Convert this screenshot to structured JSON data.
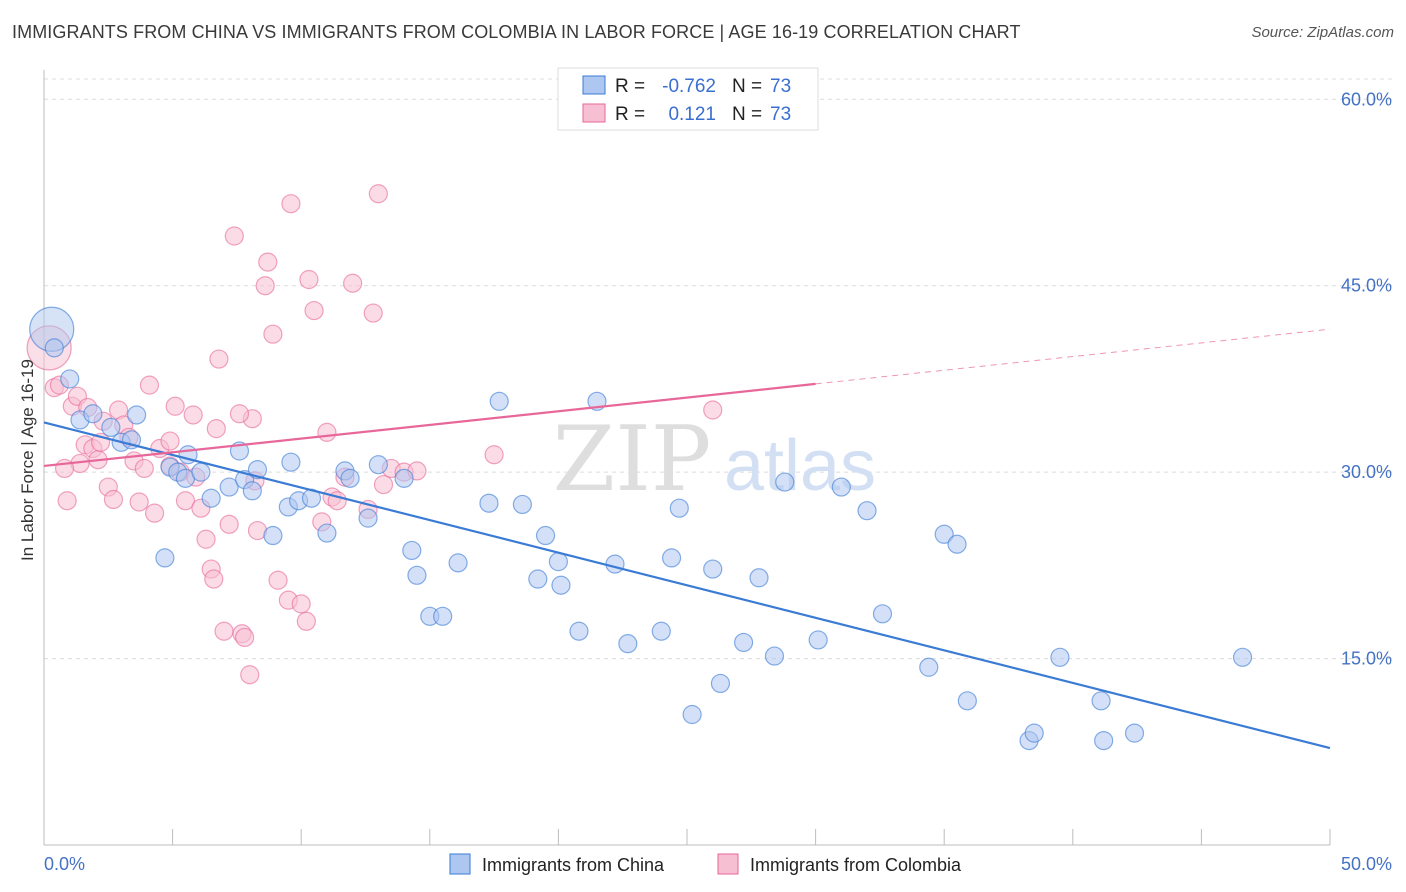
{
  "title": "IMMIGRANTS FROM CHINA VS IMMIGRANTS FROM COLOMBIA IN LABOR FORCE | AGE 16-19 CORRELATION CHART",
  "source": "Source: ZipAtlas.com",
  "watermark": {
    "zip": "ZIP",
    "atlas": "atlas"
  },
  "legend": {
    "r_label": "R =",
    "n_label": "N =",
    "rows": [
      {
        "r": "-0.762",
        "n": "73",
        "color": "#aec7f0"
      },
      {
        "r": "0.121",
        "n": "73",
        "color": "#f7bfd2"
      }
    ]
  },
  "colors": {
    "china": "#3a7bd5",
    "colombia": "#e8679a",
    "china_fill": "#aec7f0",
    "colombia_fill": "#f7bfd2",
    "axis_text": "#4472c4"
  },
  "chart_data": {
    "type": "scatter",
    "title": "IMMIGRANTS FROM CHINA VS IMMIGRANTS FROM COLOMBIA IN LABOR FORCE | AGE 16-19 CORRELATION CHART",
    "xlabel": "",
    "ylabel": "In Labor Force | Age 16-19",
    "xlim": [
      0,
      50
    ],
    "ylim": [
      0,
      63
    ],
    "x_tick_labels": [
      "0.0%",
      "50.0%"
    ],
    "y_ticks": [
      15,
      30,
      45,
      60
    ],
    "y_tick_labels": [
      "15.0%",
      "30.0%",
      "45.0%",
      "60.0%"
    ],
    "grid": true,
    "legend_position": "top-center",
    "series": [
      {
        "name": "Immigrants from China",
        "color": "#3a7bd5",
        "x": [
          0.3,
          0.4,
          1.0,
          1.4,
          1.9,
          2.6,
          3.0,
          3.4,
          3.6,
          4.7,
          4.9,
          5.2,
          5.5,
          5.6,
          6.1,
          6.5,
          7.2,
          7.6,
          7.8,
          8.1,
          8.3,
          8.9,
          9.5,
          9.6,
          9.9,
          10.4,
          11.0,
          11.7,
          11.9,
          12.6,
          13.0,
          14.0,
          14.3,
          14.5,
          15.0,
          15.5,
          16.1,
          17.3,
          17.7,
          18.6,
          19.2,
          19.5,
          20.0,
          20.1,
          20.8,
          21.5,
          22.2,
          22.7,
          24.0,
          24.4,
          24.7,
          25.2,
          26.0,
          26.3,
          27.2,
          27.8,
          28.4,
          28.8,
          30.1,
          31.0,
          32.0,
          32.6,
          34.4,
          35.0,
          35.5,
          35.9,
          38.3,
          38.5,
          39.5,
          41.1,
          42.4,
          41.2,
          46.6
        ],
        "y": [
          41.5,
          40.0,
          37.5,
          34.2,
          34.7,
          33.6,
          32.4,
          32.6,
          34.6,
          23.1,
          30.4,
          30.0,
          29.5,
          31.4,
          30.0,
          27.9,
          28.8,
          31.7,
          29.4,
          28.5,
          30.2,
          24.9,
          27.2,
          30.8,
          27.7,
          27.9,
          25.1,
          30.1,
          29.5,
          26.3,
          30.6,
          29.5,
          23.7,
          21.7,
          18.4,
          18.4,
          22.7,
          27.5,
          35.7,
          27.4,
          21.4,
          24.9,
          22.8,
          20.9,
          17.2,
          35.7,
          22.6,
          16.2,
          17.2,
          23.1,
          27.1,
          10.5,
          22.2,
          13.0,
          16.3,
          21.5,
          15.2,
          29.2,
          16.5,
          28.8,
          26.9,
          18.6,
          14.3,
          25.0,
          24.2,
          11.6,
          8.4,
          9.0,
          15.1,
          11.6,
          9.0,
          8.4,
          15.1
        ],
        "trend": {
          "x": [
            0,
            50
          ],
          "y": [
            34.0,
            7.8
          ]
        }
      },
      {
        "name": "Immigrants from Colombia",
        "color": "#e8679a",
        "x": [
          0.2,
          0.4,
          0.6,
          0.9,
          1.1,
          1.3,
          1.4,
          1.6,
          1.7,
          1.9,
          2.1,
          2.2,
          2.3,
          2.5,
          2.7,
          2.9,
          3.1,
          3.3,
          3.5,
          3.7,
          3.9,
          4.1,
          4.3,
          4.5,
          4.9,
          5.1,
          5.3,
          5.5,
          5.8,
          5.9,
          6.1,
          6.3,
          6.5,
          6.6,
          6.8,
          7.0,
          7.2,
          7.4,
          7.7,
          7.8,
          8.0,
          8.1,
          8.3,
          8.6,
          8.7,
          8.9,
          9.1,
          9.5,
          9.6,
          10.0,
          10.2,
          10.3,
          10.5,
          10.8,
          11.0,
          11.2,
          11.4,
          11.7,
          12.0,
          12.6,
          12.8,
          13.0,
          13.2,
          13.5,
          14.0,
          14.5,
          17.5,
          26.0,
          0.8,
          4.9,
          6.7,
          7.6,
          8.2
        ],
        "y": [
          40.0,
          36.8,
          37.0,
          27.7,
          35.3,
          36.1,
          30.7,
          32.2,
          35.2,
          31.9,
          31.0,
          32.4,
          34.1,
          28.8,
          27.8,
          35.0,
          33.8,
          32.8,
          30.9,
          27.6,
          30.3,
          37.0,
          26.7,
          31.9,
          30.5,
          35.3,
          30.0,
          27.7,
          34.6,
          29.6,
          27.1,
          24.6,
          22.2,
          21.4,
          39.1,
          17.2,
          25.8,
          49.0,
          17.0,
          16.7,
          13.7,
          34.3,
          25.3,
          45.0,
          46.9,
          41.1,
          21.3,
          19.7,
          51.6,
          19.4,
          18.0,
          45.5,
          43.0,
          26.0,
          33.2,
          28.0,
          27.7,
          29.6,
          45.2,
          27.0,
          42.8,
          52.4,
          29.0,
          30.3,
          30.0,
          30.1,
          31.4,
          35.0,
          30.3,
          32.5,
          33.5,
          34.7,
          29.3
        ],
        "trend": {
          "x": [
            0,
            30
          ],
          "y": [
            30.5,
            37.1
          ]
        },
        "trend_extension": {
          "x": [
            30,
            50
          ],
          "y": [
            37.1,
            41.5
          ]
        }
      }
    ]
  }
}
